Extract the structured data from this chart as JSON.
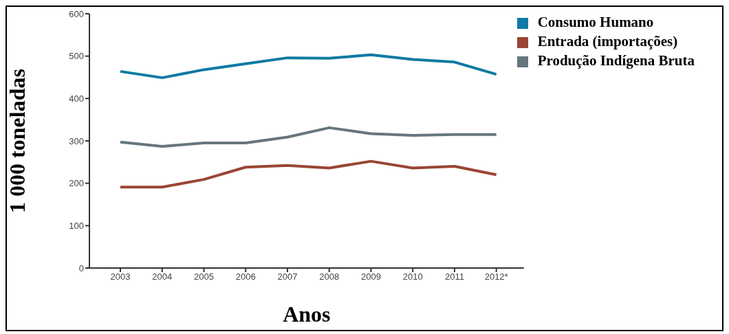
{
  "chart_data": {
    "type": "line",
    "xlabel": "Anos",
    "ylabel": "1 000 toneladas",
    "categories": [
      "2003",
      "2004",
      "2005",
      "2006",
      "2007",
      "2008",
      "2009",
      "2010",
      "2011",
      "2012*"
    ],
    "series": [
      {
        "name": "Produção Indígena Bruta",
        "color": "#66767f",
        "values": [
          297,
          287,
          295,
          295,
          309,
          331,
          317,
          313,
          315,
          315
        ]
      },
      {
        "name": "Consumo Humano",
        "color": "#0f7aa3",
        "values": [
          464,
          449,
          468,
          482,
          496,
          495,
          503,
          492,
          486,
          457
        ]
      },
      {
        "name": "Entrada (importações)",
        "color": "#9a4535",
        "values": [
          191,
          191,
          209,
          238,
          242,
          236,
          252,
          236,
          240,
          220
        ]
      }
    ],
    "ylim": [
      0,
      600
    ],
    "yticks": [
      0,
      100,
      200,
      300,
      400,
      500,
      600
    ],
    "grid": false,
    "legend": "top right",
    "marker": "none",
    "line_style": "solid"
  }
}
